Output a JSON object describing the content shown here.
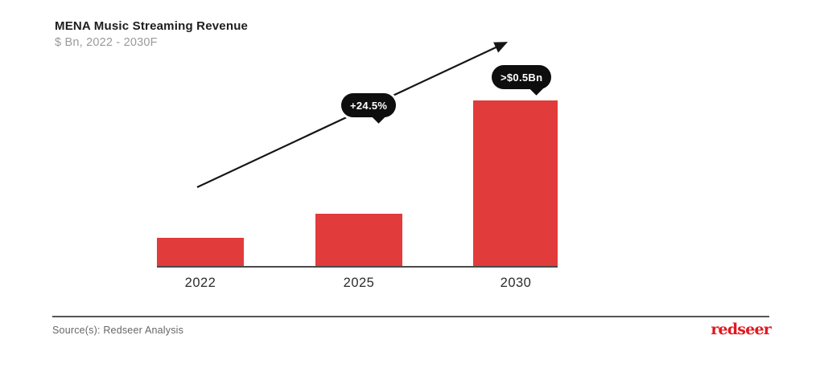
{
  "header": {
    "title": "MENA Music Streaming Revenue",
    "subtitle": "$ Bn, 2022 - 2030F"
  },
  "chart_data": {
    "type": "bar",
    "title": "MENA Music Streaming Revenue",
    "subtitle": "$ Bn, 2022 - 2030F",
    "unit": "$ Bn",
    "categories": [
      "2022",
      "2025",
      "2030"
    ],
    "values": [
      0.09,
      0.16,
      0.5
    ],
    "value_notes": [
      "estimated from bar height",
      "estimated from bar height",
      "labeled >$0.5Bn"
    ],
    "ylim": [
      0,
      0.52
    ],
    "grid": false,
    "legend": false,
    "bar_color": "#e23b3b",
    "annotations": [
      {
        "type": "cagr-arrow",
        "label": "+24.5%",
        "direction": "up-right"
      },
      {
        "type": "value-callout",
        "label": ">$0.5Bn",
        "target_category": "2030"
      }
    ]
  },
  "annotations": {
    "growth_label": "+24.5%",
    "value_label": ">$0.5Bn"
  },
  "footer": {
    "source": "Source(s): Redseer Analysis",
    "logo": "redseer"
  },
  "colors": {
    "bar": "#e23b3b",
    "bubble_bg": "#0e0e0e",
    "bubble_text": "#ffffff",
    "arrow": "#151515",
    "axis": "#4a4a4a",
    "title_text": "#1d1d1d",
    "subtitle_text": "#9a9a9a",
    "source_text": "#666666",
    "logo_red": "#e0191f"
  }
}
